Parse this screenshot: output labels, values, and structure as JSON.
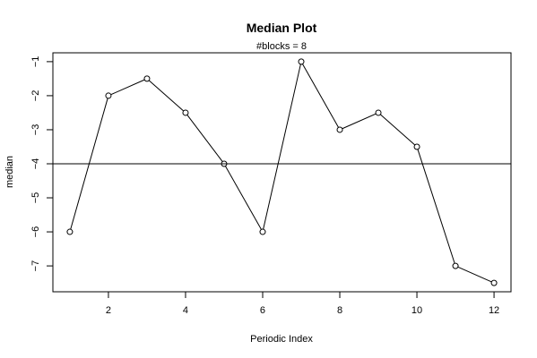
{
  "chart_data": {
    "type": "line",
    "title": "Median Plot",
    "subtitle": "#blocks =  8",
    "xlabel": "Periodic Index",
    "ylabel": "median",
    "x": [
      1,
      2,
      3,
      4,
      5,
      6,
      7,
      8,
      9,
      10,
      11,
      12
    ],
    "series": [
      {
        "values": [
          -6,
          -2,
          -1.5,
          -2.5,
          -4,
          -6,
          -1,
          -3,
          -2.5,
          -3.5,
          -7,
          -7.5
        ]
      }
    ],
    "reference_line": {
      "orientation": "horizontal",
      "y": -4
    },
    "xlim": [
      0.56,
      12.44
    ],
    "ylim": [
      -7.76,
      -0.74
    ],
    "x_ticks": [
      2,
      4,
      6,
      8,
      10,
      12
    ],
    "x_tick_labels": [
      "2",
      "4",
      "6",
      "8",
      "10",
      "12"
    ],
    "y_ticks": [
      -7,
      -6,
      -5,
      -4,
      -3,
      -2,
      -1
    ],
    "y_tick_labels": [
      "−7",
      "−6",
      "−5",
      "−4",
      "−3",
      "−2",
      "−1"
    ],
    "markers": "open-circle",
    "grid": false,
    "legend": "none"
  }
}
